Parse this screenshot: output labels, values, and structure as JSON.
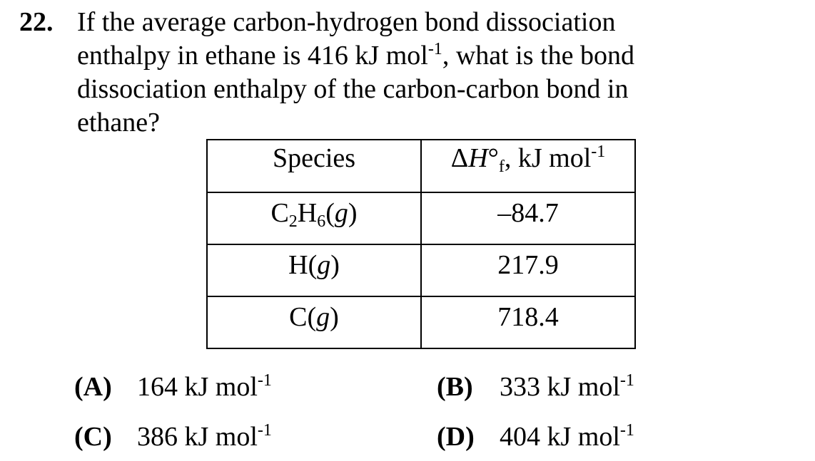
{
  "question": {
    "number": "22.",
    "lines": [
      {
        "text": "If the average carbon-hydrogen bond dissociation"
      },
      {
        "before": "enthalpy in ethane is 416 kJ mol",
        "sup": "-1",
        "after": ", what is the bond"
      },
      {
        "text": "dissociation enthalpy of the carbon-carbon bond in"
      },
      {
        "text": "ethane?"
      }
    ]
  },
  "table": {
    "headers": {
      "species": "Species",
      "enthalpy": {
        "delta": "Δ",
        "symbol": "H",
        "degree": "°",
        "subscript": "f",
        "unit": ", kJ mol",
        "unit_sup": "-1"
      }
    },
    "rows": [
      {
        "species_parts": {
          "a": "C",
          "sub1": "2",
          "b": "H",
          "sub2": "6",
          "open": "(",
          "state": "g",
          "close": ")"
        },
        "value": "–84.7"
      },
      {
        "species_parts": {
          "a": "H",
          "open": "(",
          "state": "g",
          "close": ")"
        },
        "value": "217.9"
      },
      {
        "species_parts": {
          "a": "C",
          "open": "(",
          "state": "g",
          "close": ")"
        },
        "value": "718.4"
      }
    ]
  },
  "choices": [
    {
      "letter": "(A)",
      "value": "164 kJ mol",
      "sup": "-1"
    },
    {
      "letter": "(B)",
      "value": "333 kJ mol",
      "sup": "-1"
    },
    {
      "letter": "(C)",
      "value": "386 kJ mol",
      "sup": "-1"
    },
    {
      "letter": "(D)",
      "value": "404 kJ mol",
      "sup": "-1"
    }
  ]
}
